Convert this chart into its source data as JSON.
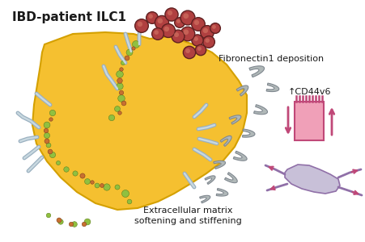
{
  "title": "IBD-patient ILC1",
  "label_fibronectin": "Fibronectin1 deposition",
  "label_cd44v6": "↑CD44v6",
  "label_ecm": "Extracellular matrix\nsoftening and stiffening",
  "bg_color": "#ffffff",
  "organoid_fill": "#f5c030",
  "organoid_edge": "#d4a000",
  "epithelium_outer": "#e8a090",
  "epithelium_pink": "#f0b8b8",
  "epithelium_light": "#fce0d8",
  "epithelium_border": "#c86858",
  "epithelium_purple_edge": "#b090c0",
  "green_color": "#90c040",
  "orange_color": "#c87030",
  "blue_gray": "#9ab0c0",
  "blue_gray_light": "#c8d8e0",
  "cell_fill": "#b04040",
  "cell_edge": "#602020",
  "cell_inner": "#d07060",
  "matrix_fill": "#b0b8b8",
  "matrix_edge": "#808890",
  "cd44_fill": "#f0a0b8",
  "cd44_edge": "#c04878",
  "fibro_fill": "#c8c0d8",
  "fibro_edge": "#9070a8",
  "fibro_arrow": "#c04878",
  "title_fontsize": 11,
  "label_fontsize": 8,
  "cd44_fontsize": 8
}
